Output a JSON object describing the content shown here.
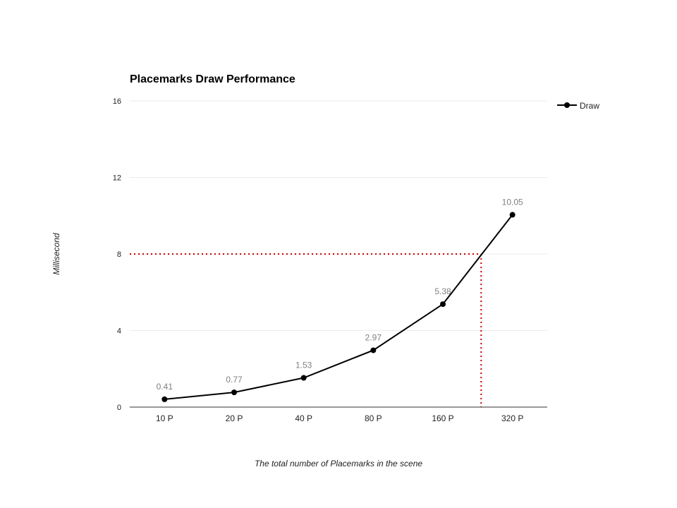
{
  "chart_data": {
    "type": "line",
    "title": "Placemarks Draw Performance",
    "xlabel": "The total number of Placemarks in the scene",
    "ylabel": "Millisecond",
    "categories": [
      "10 P",
      "20 P",
      "40 P",
      "80 P",
      "160 P",
      "320 P"
    ],
    "series": [
      {
        "name": "Draw",
        "values": [
          0.41,
          0.77,
          1.53,
          2.97,
          5.38,
          10.05
        ],
        "color": "#000000"
      }
    ],
    "data_labels": [
      "0.41",
      "0.77",
      "1.53",
      "2.97",
      "5.38",
      "10.05"
    ],
    "ylim": [
      0,
      16
    ],
    "yticks": [
      0,
      4,
      8,
      12,
      16
    ],
    "ytick_labels": [
      "0",
      "4",
      "8",
      "12",
      "16"
    ],
    "grid": true,
    "legend_position": "top-right",
    "reference_lines": {
      "y": 8,
      "x_category_position": 4.55,
      "color": "#cc0000",
      "style": "dotted"
    }
  }
}
